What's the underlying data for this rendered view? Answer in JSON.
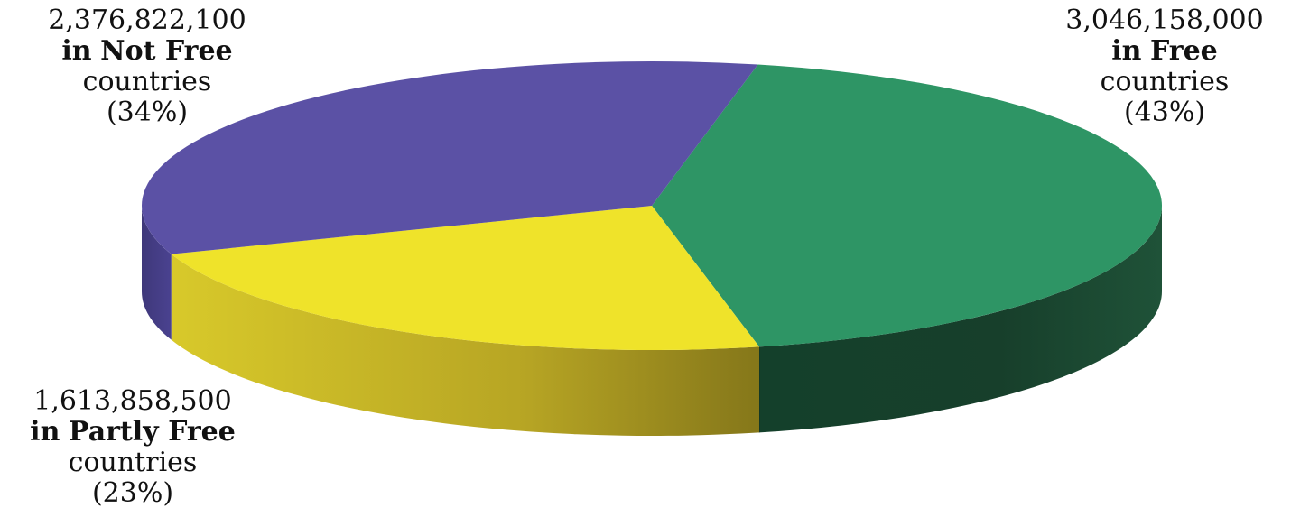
{
  "chart_data": {
    "type": "pie",
    "style": "3d",
    "title": "",
    "slices": [
      {
        "value": 3046158000,
        "percent": 43,
        "color": "#2e9565",
        "label_value": "3,046,158,000",
        "label_prefix": "in",
        "label_category": "Free",
        "label_suffix": "countries",
        "label_percent": "(43%)"
      },
      {
        "value": 1613858500,
        "percent": 23,
        "color": "#efe32a",
        "label_value": "1,613,858,500",
        "label_prefix": "in",
        "label_category": "Partly Free",
        "label_suffix": "countries",
        "label_percent": "(23%)"
      },
      {
        "value": 2376822100,
        "percent": 34,
        "color": "#5b51a5",
        "label_value": "2,376,822,100",
        "label_prefix": "in",
        "label_category": "Not Free",
        "label_suffix": "countries",
        "label_percent": "(34%)"
      }
    ]
  }
}
